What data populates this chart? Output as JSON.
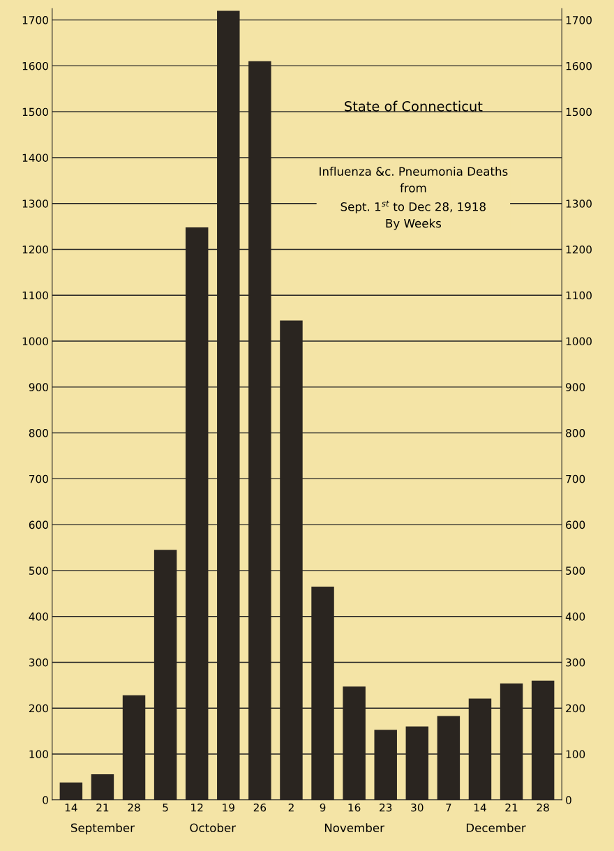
{
  "chart_data": {
    "type": "bar",
    "title": "State of Connecticut",
    "subtitle": "Influenza &c. Pneumonia Deaths\nfrom\nSept. 1$^{st}$ to Dec 28, 1918\nBy Weeks",
    "categories": [
      "14",
      "21",
      "28",
      "5",
      "12",
      "19",
      "26",
      "2",
      "9",
      "16",
      "23",
      "30",
      "7",
      "14",
      "21",
      "28"
    ],
    "values": [
      38,
      56,
      228,
      545,
      1248,
      1720,
      1610,
      1045,
      465,
      247,
      153,
      160,
      183,
      221,
      254,
      260
    ],
    "color": "#2a2520",
    "ylim": [
      0,
      1725
    ],
    "yticks": [
      0,
      100,
      200,
      300,
      400,
      500,
      600,
      700,
      800,
      900,
      1000,
      1100,
      1200,
      1300,
      1400,
      1500,
      1600,
      1700
    ],
    "y2lim": [
      0,
      1725
    ],
    "y2ticks": [
      0,
      100,
      200,
      300,
      400,
      500,
      600,
      700,
      800,
      900,
      1000,
      1100,
      1200,
      1300,
      1500,
      1600,
      1700
    ],
    "grid": "y",
    "annotations": [
      "September",
      "October",
      "November",
      "December"
    ]
  }
}
